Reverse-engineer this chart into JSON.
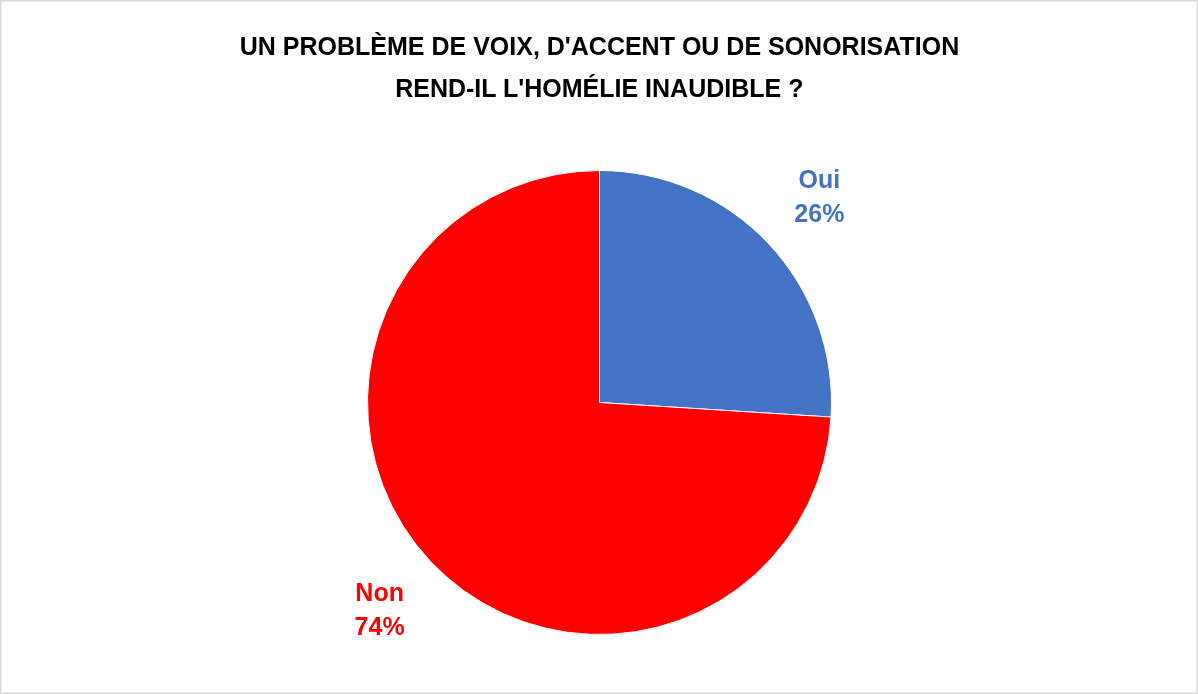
{
  "chart_data": {
    "type": "pie",
    "title": "UN PROBLÈME DE VOIX, D'ACCENT OU DE SONORISATION\nREND-IL L'HOMÉLIE INAUDIBLE ?",
    "categories": [
      "Oui",
      "Non"
    ],
    "values": [
      26,
      74
    ],
    "colors": [
      "#4472c4",
      "#ff0000"
    ],
    "value_labels": [
      "26%",
      "74%"
    ]
  }
}
